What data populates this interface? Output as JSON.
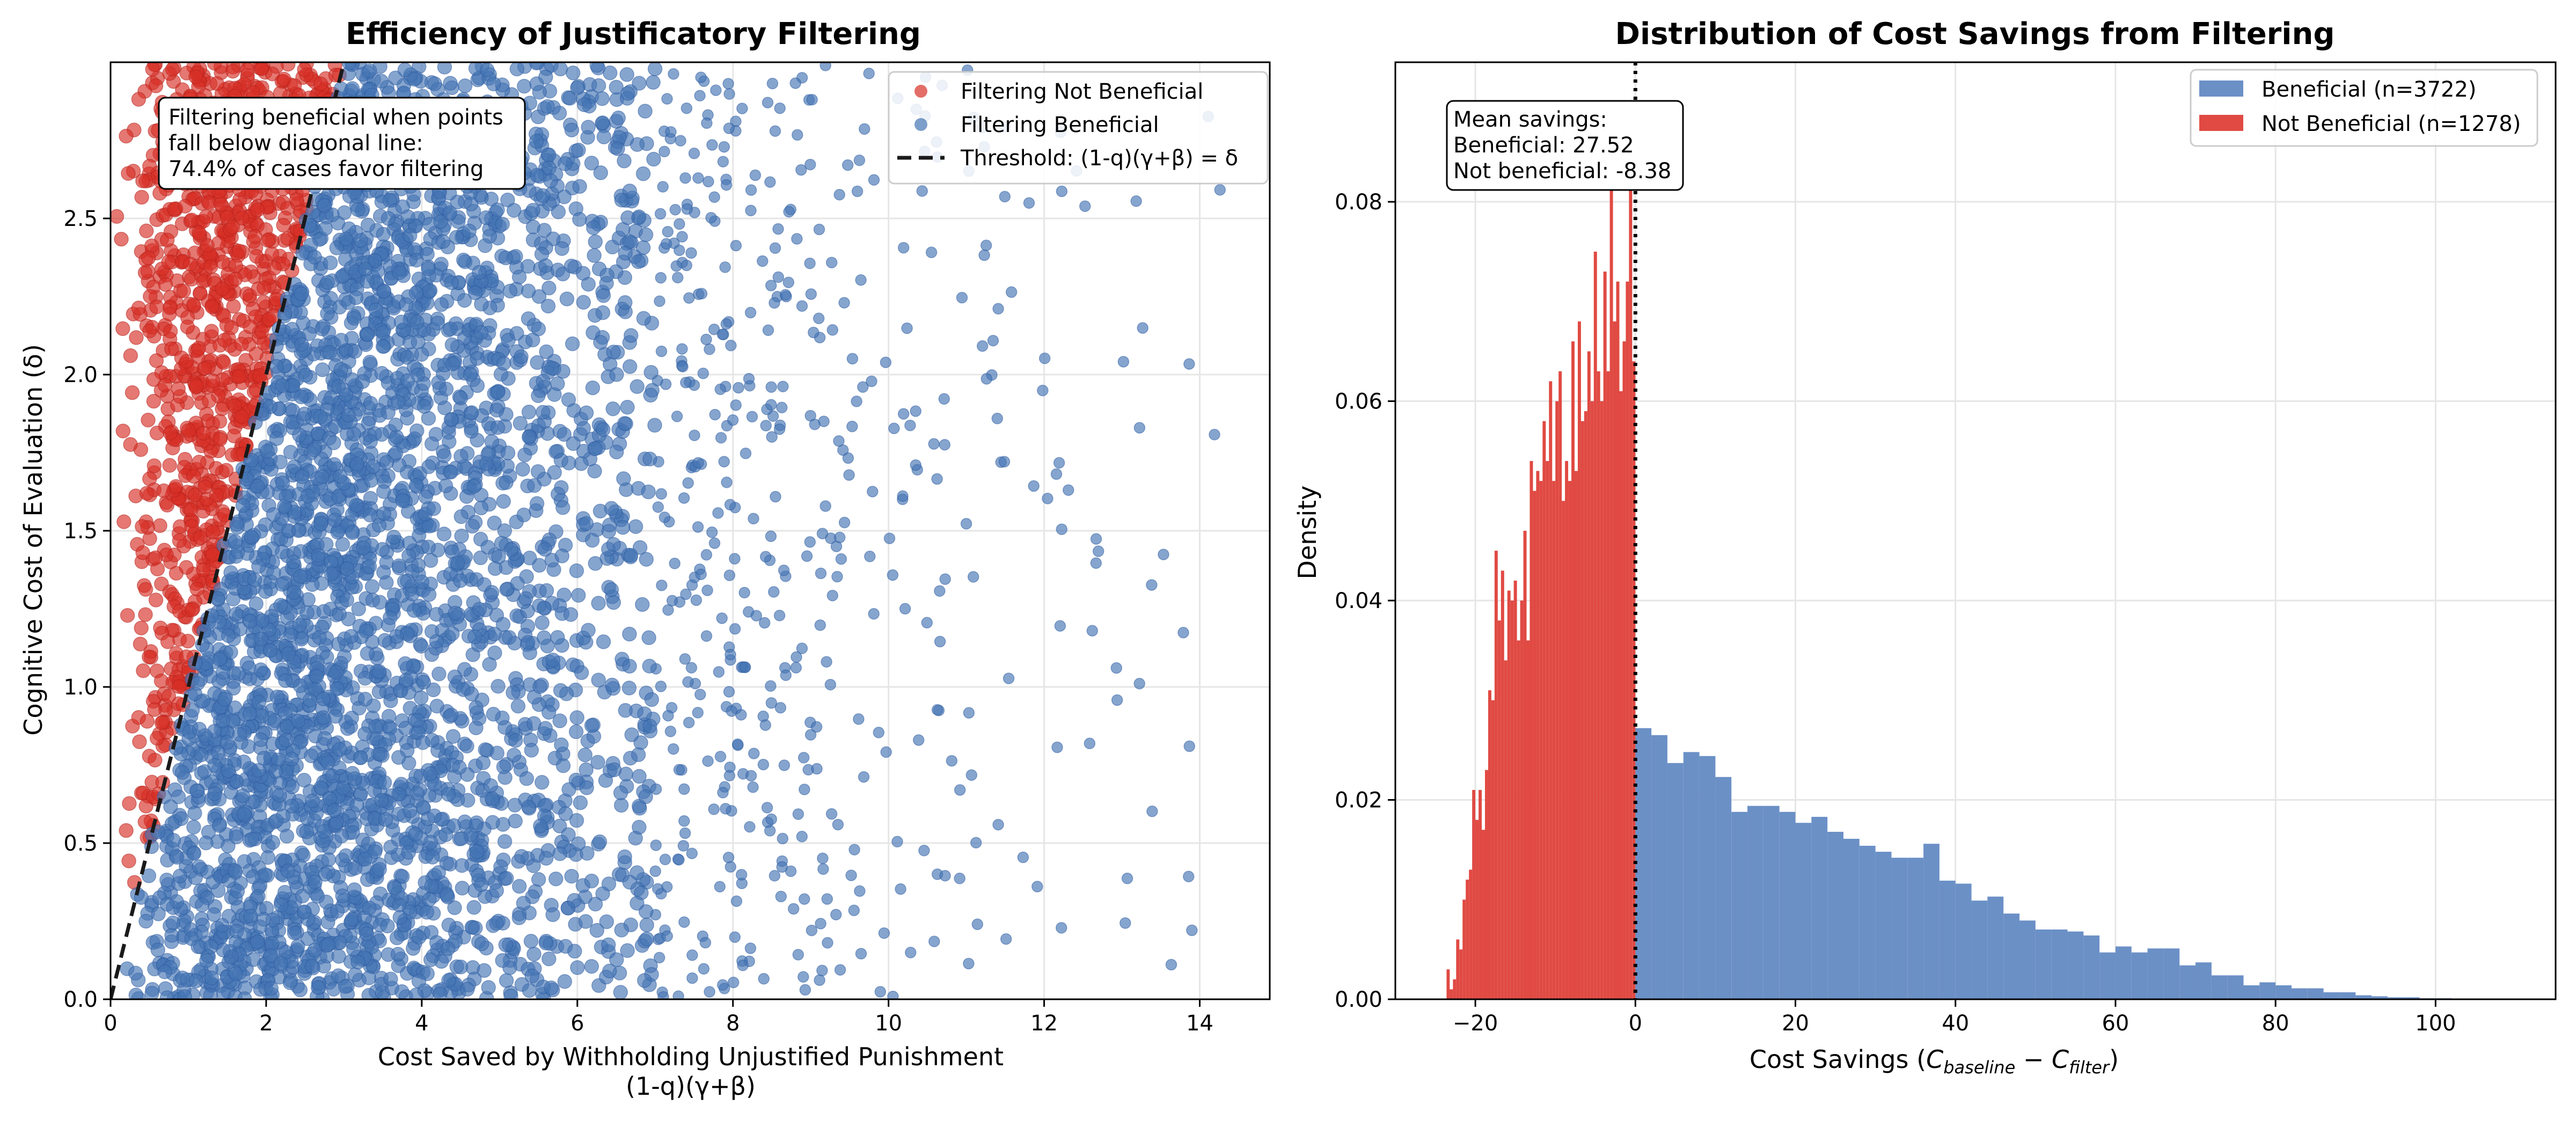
{
  "colors": {
    "red": "#d73027",
    "blue": "#4575b4",
    "red_hist": "#e04a43",
    "blue_hist": "#6b90c6",
    "grid": "#e6e6e6"
  },
  "chart_data": [
    {
      "type": "scatter",
      "title": "Efficiency of Justificatory Filtering",
      "xlabel": "Cost Saved by Withholding Unjustified Punishment",
      "xlabel2": "(1-q)(γ+β)",
      "ylabel": "Cognitive Cost of Evaluation (δ)",
      "xlim": [
        0,
        14.9
      ],
      "ylim": [
        0,
        3.0
      ],
      "xticks": [
        0,
        2,
        4,
        6,
        8,
        10,
        12,
        14
      ],
      "yticks": [
        0.0,
        0.5,
        1.0,
        1.5,
        2.0,
        2.5
      ],
      "ytick_labels": [
        "0.0",
        "0.5",
        "1.0",
        "1.5",
        "2.0",
        "2.5"
      ],
      "grid": true,
      "legend_position": "top-right",
      "series": [
        {
          "name": "Filtering Not Beneficial",
          "color": "#d73027",
          "region": "above-threshold"
        },
        {
          "name": "Filtering Beneficial",
          "color": "#4575b4",
          "region": "below-threshold"
        }
      ],
      "threshold": {
        "name": "Threshold: (1-q)(γ+β) = δ",
        "slope": 1.0,
        "intercept": 0.0
      },
      "annotation": {
        "lines": [
          "Filtering beneficial when points",
          "fall below diagonal line:",
          "74.4% of cases favor filtering"
        ]
      },
      "summary": {
        "beneficial_share_pct": 74.4
      }
    },
    {
      "type": "bar",
      "subtype": "histogram",
      "title": "Distribution of Cost Savings from Filtering",
      "xlabel_prefix": "Cost Savings (",
      "xlabel_math": [
        "C",
        "baseline",
        " − ",
        "C",
        "filter"
      ],
      "xlabel_suffix": ")",
      "ylabel": "Density",
      "xlim": [
        -30,
        115
      ],
      "ylim": [
        0,
        0.094
      ],
      "xticks": [
        -20,
        0,
        20,
        40,
        60,
        80,
        100
      ],
      "xtick_labels": [
        "−20",
        "0",
        "20",
        "40",
        "60",
        "80",
        "100"
      ],
      "yticks": [
        0.0,
        0.02,
        0.04,
        0.06,
        0.08
      ],
      "ytick_labels": [
        "0.00",
        "0.02",
        "0.04",
        "0.06",
        "0.08"
      ],
      "grid": true,
      "legend_position": "top-right",
      "reference_line": {
        "x": 0,
        "style": "dotted"
      },
      "series": [
        {
          "name": "Beneficial (n=3722)",
          "color": "#6b90c6",
          "bin_start": 0,
          "bin_width": 2,
          "values": [
            0.0272,
            0.0265,
            0.0237,
            0.0248,
            0.0244,
            0.0223,
            0.0188,
            0.0194,
            0.0194,
            0.0188,
            0.0177,
            0.0183,
            0.0168,
            0.0161,
            0.0154,
            0.0148,
            0.0142,
            0.0142,
            0.0156,
            0.0119,
            0.0116,
            0.0099,
            0.0103,
            0.0086,
            0.0079,
            0.007,
            0.007,
            0.0068,
            0.0064,
            0.0047,
            0.0053,
            0.0047,
            0.0051,
            0.0051,
            0.0034,
            0.0037,
            0.0024,
            0.0024,
            0.0014,
            0.0017,
            0.0014,
            0.0011,
            0.0011,
            0.0007,
            0.0007,
            0.0004,
            0.0003,
            0.0002,
            0.0002,
            0.0001,
            0.0001,
            0.0,
            0.0,
            0.0,
            0.0
          ]
        },
        {
          "name": "Not Beneficial (n=1278)",
          "color": "#e04a43",
          "bin_start": -23.6,
          "bin_width": 0.4,
          "values": [
            0.003,
            0.001,
            0.002,
            0.006,
            0.005,
            0.01,
            0.012,
            0.013,
            0.021,
            0.018,
            0.021,
            0.017,
            0.023,
            0.031,
            0.03,
            0.045,
            0.038,
            0.043,
            0.034,
            0.041,
            0.04,
            0.042,
            0.036,
            0.04,
            0.047,
            0.036,
            0.054,
            0.051,
            0.053,
            0.052,
            0.058,
            0.054,
            0.062,
            0.052,
            0.06,
            0.063,
            0.05,
            0.054,
            0.052,
            0.066,
            0.053,
            0.068,
            0.058,
            0.059,
            0.065,
            0.06,
            0.075,
            0.063,
            0.06,
            0.073,
            0.063,
            0.082,
            0.068,
            0.072,
            0.061,
            0.066,
            0.072,
            0.085,
            0.064
          ]
        }
      ],
      "annotation": {
        "lines": [
          "Mean savings:",
          "Beneficial: 27.52",
          "Not beneficial: -8.38"
        ]
      },
      "means": {
        "beneficial": 27.52,
        "not_beneficial": -8.38
      }
    }
  ]
}
